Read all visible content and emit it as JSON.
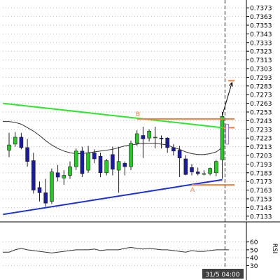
{
  "chart_data": [
    {
      "type": "candlestick",
      "title": "",
      "ylim": [
        0.7128,
        0.7378
      ],
      "y_ticks": [
        "0.7133",
        "0.7143",
        "0.7153",
        "0.7163",
        "0.7173",
        "0.7183",
        "0.7193",
        "0.7203",
        "0.7213",
        "0.7223",
        "0.7233",
        "0.7243",
        "0.7253",
        "0.7263",
        "0.7273",
        "0.7283",
        "0.7293",
        "0.7303",
        "0.7313",
        "0.7323",
        "0.7333",
        "0.7343",
        "0.7353",
        "0.7363",
        "0.7373"
      ],
      "candles": [
        {
          "o": 0.7209,
          "h": 0.7229,
          "l": 0.7201,
          "c": 0.7215
        },
        {
          "o": 0.7216,
          "h": 0.723,
          "l": 0.7213,
          "c": 0.7224
        },
        {
          "o": 0.7224,
          "h": 0.7229,
          "l": 0.721,
          "c": 0.7212
        },
        {
          "o": 0.7212,
          "h": 0.7222,
          "l": 0.719,
          "c": 0.7196
        },
        {
          "o": 0.7197,
          "h": 0.7206,
          "l": 0.7159,
          "c": 0.7163
        },
        {
          "o": 0.7166,
          "h": 0.7173,
          "l": 0.715,
          "c": 0.716
        },
        {
          "o": 0.716,
          "h": 0.7176,
          "l": 0.7144,
          "c": 0.7148
        },
        {
          "o": 0.715,
          "h": 0.7188,
          "l": 0.7147,
          "c": 0.7184
        },
        {
          "o": 0.7183,
          "h": 0.7192,
          "l": 0.7173,
          "c": 0.7178
        },
        {
          "o": 0.7177,
          "h": 0.7186,
          "l": 0.7169,
          "c": 0.718
        },
        {
          "o": 0.718,
          "h": 0.7196,
          "l": 0.7176,
          "c": 0.719
        },
        {
          "o": 0.719,
          "h": 0.7211,
          "l": 0.7186,
          "c": 0.7208
        },
        {
          "o": 0.7208,
          "h": 0.7213,
          "l": 0.7178,
          "c": 0.7182
        },
        {
          "o": 0.7186,
          "h": 0.7214,
          "l": 0.7183,
          "c": 0.7206
        },
        {
          "o": 0.7206,
          "h": 0.721,
          "l": 0.7194,
          "c": 0.7199
        },
        {
          "o": 0.7202,
          "h": 0.7206,
          "l": 0.7178,
          "c": 0.7183
        },
        {
          "o": 0.7183,
          "h": 0.7199,
          "l": 0.718,
          "c": 0.7197
        },
        {
          "o": 0.7204,
          "h": 0.7213,
          "l": 0.718,
          "c": 0.7187
        },
        {
          "o": 0.7186,
          "h": 0.7213,
          "l": 0.716,
          "c": 0.7196
        },
        {
          "o": 0.7194,
          "h": 0.7196,
          "l": 0.718,
          "c": 0.719
        },
        {
          "o": 0.719,
          "h": 0.722,
          "l": 0.7186,
          "c": 0.7217
        },
        {
          "o": 0.7217,
          "h": 0.7232,
          "l": 0.7214,
          "c": 0.7228
        },
        {
          "o": 0.7226,
          "h": 0.7236,
          "l": 0.72,
          "c": 0.7222
        },
        {
          "o": 0.7223,
          "h": 0.7233,
          "l": 0.7219,
          "c": 0.7231
        },
        {
          "o": 0.7224,
          "h": 0.7236,
          "l": 0.7211,
          "c": 0.7224
        },
        {
          "o": 0.7223,
          "h": 0.7226,
          "l": 0.7211,
          "c": 0.7222
        },
        {
          "o": 0.7223,
          "h": 0.7224,
          "l": 0.7206,
          "c": 0.7212
        },
        {
          "o": 0.7212,
          "h": 0.7216,
          "l": 0.7203,
          "c": 0.7208
        },
        {
          "o": 0.7209,
          "h": 0.7214,
          "l": 0.7178,
          "c": 0.72
        },
        {
          "o": 0.7199,
          "h": 0.7203,
          "l": 0.718,
          "c": 0.7181
        },
        {
          "o": 0.7189,
          "h": 0.7193,
          "l": 0.718,
          "c": 0.7184
        },
        {
          "o": 0.7184,
          "h": 0.7189,
          "l": 0.718,
          "c": 0.7182
        },
        {
          "o": 0.7182,
          "h": 0.7186,
          "l": 0.718,
          "c": 0.7182
        },
        {
          "o": 0.7182,
          "h": 0.7189,
          "l": 0.718,
          "c": 0.7188
        },
        {
          "o": 0.7183,
          "h": 0.7198,
          "l": 0.7179,
          "c": 0.7196
        },
        {
          "o": 0.7198,
          "h": 0.7253,
          "l": 0.7176,
          "c": 0.7248
        }
      ],
      "moving_average": [
        0.7242,
        0.7241,
        0.7239,
        0.7235,
        0.7231,
        0.7226,
        0.722,
        0.7215,
        0.7211,
        0.7208,
        0.7206,
        0.7205,
        0.7205,
        0.7206,
        0.7207,
        0.7208,
        0.7209,
        0.721,
        0.7212,
        0.7214,
        0.7215,
        0.7216,
        0.7217,
        0.7217,
        0.7217,
        0.7216,
        0.7215,
        0.7212,
        0.721,
        0.7207,
        0.7205,
        0.7204,
        0.7204,
        0.7205,
        0.7207,
        0.7212
      ],
      "trendlines": [
        {
          "color": "#1a2fe0",
          "from": {
            "bar": -1,
            "price": 0.7135
          },
          "to": {
            "bar": 35,
            "price": 0.7175
          }
        },
        {
          "color": "#2ee62e",
          "from": {
            "bar": -1,
            "price": 0.7263
          },
          "to": {
            "bar": 35,
            "price": 0.7235
          }
        }
      ],
      "levels": [
        {
          "label": "B",
          "price": 0.7245,
          "from_bar": 21,
          "to_bar": 37,
          "color": "#f47c3c"
        },
        {
          "label": "A",
          "price": 0.7169,
          "from_bar": 30,
          "to_bar": 37,
          "color": "#f47c3c"
        },
        {
          "label": "",
          "price": 0.7235,
          "from_bar": 35,
          "to_bar": 37,
          "color": "#f47c3c"
        },
        {
          "label": "",
          "price": 0.7289,
          "from_bar": 36,
          "to_bar": 37,
          "color": "#f47c3c"
        }
      ],
      "projection_arrow": {
        "from": {
          "bar": 35,
          "price": 0.7249
        },
        "to": {
          "bar": 36.6,
          "price": 0.7287
        }
      },
      "colors": {
        "up": "#22cc22",
        "down": "#1a1aaa",
        "ma": "#333333",
        "grid": "#bbbbbb"
      }
    },
    {
      "type": "line",
      "indicator": "RSI",
      "ylim": [
        25,
        65
      ],
      "y_ticks": [
        "60",
        "50",
        "40",
        "30"
      ],
      "values": [
        47,
        50,
        52,
        50,
        49,
        48,
        47,
        46,
        47,
        48,
        49,
        50,
        50,
        50,
        51,
        49,
        50,
        50,
        50,
        52,
        53,
        52,
        51,
        52,
        51,
        50,
        50,
        49,
        48,
        47,
        49,
        48,
        48,
        49,
        50,
        50
      ]
    }
  ],
  "time_label": "31/5 04:00",
  "panel_title": "RSI"
}
